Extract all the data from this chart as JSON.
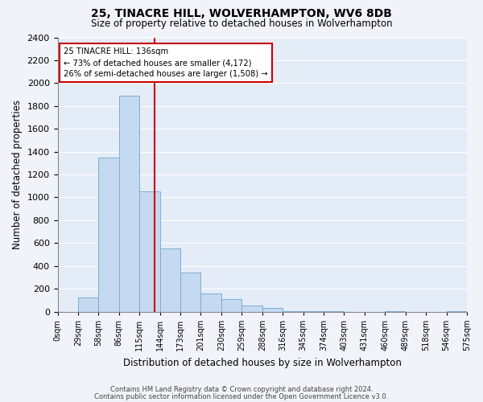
{
  "title": "25, TINACRE HILL, WOLVERHAMPTON, WV6 8DB",
  "subtitle": "Size of property relative to detached houses in Wolverhampton",
  "xlabel": "Distribution of detached houses by size in Wolverhampton",
  "ylabel": "Number of detached properties",
  "bar_color": "#c5d9f0",
  "bar_edge_color": "#7bafd4",
  "background_color": "#f0f4fa",
  "plot_bg_color": "#e4ecf7",
  "grid_color": "#ffffff",
  "bin_labels": [
    "0sqm",
    "29sqm",
    "58sqm",
    "86sqm",
    "115sqm",
    "144sqm",
    "173sqm",
    "201sqm",
    "230sqm",
    "259sqm",
    "288sqm",
    "316sqm",
    "345sqm",
    "374sqm",
    "403sqm",
    "431sqm",
    "460sqm",
    "489sqm",
    "518sqm",
    "546sqm",
    "575sqm"
  ],
  "counts": [
    0,
    125,
    1350,
    1890,
    1050,
    550,
    340,
    160,
    110,
    55,
    30,
    5,
    5,
    5,
    0,
    0,
    5,
    0,
    0,
    5
  ],
  "n_bins": 20,
  "vline_bin": 4,
  "vline_color": "#cc0000",
  "annotation_title": "25 TINACRE HILL: 136sqm",
  "annotation_line1": "← 73% of detached houses are smaller (4,172)",
  "annotation_line2": "26% of semi-detached houses are larger (1,508) →",
  "annotation_box_color": "#ffffff",
  "annotation_border_color": "#cc0000",
  "ylim": [
    0,
    2400
  ],
  "yticks": [
    0,
    200,
    400,
    600,
    800,
    1000,
    1200,
    1400,
    1600,
    1800,
    2000,
    2200,
    2400
  ],
  "footer1": "Contains HM Land Registry data © Crown copyright and database right 2024.",
  "footer2": "Contains public sector information licensed under the Open Government Licence v3.0."
}
